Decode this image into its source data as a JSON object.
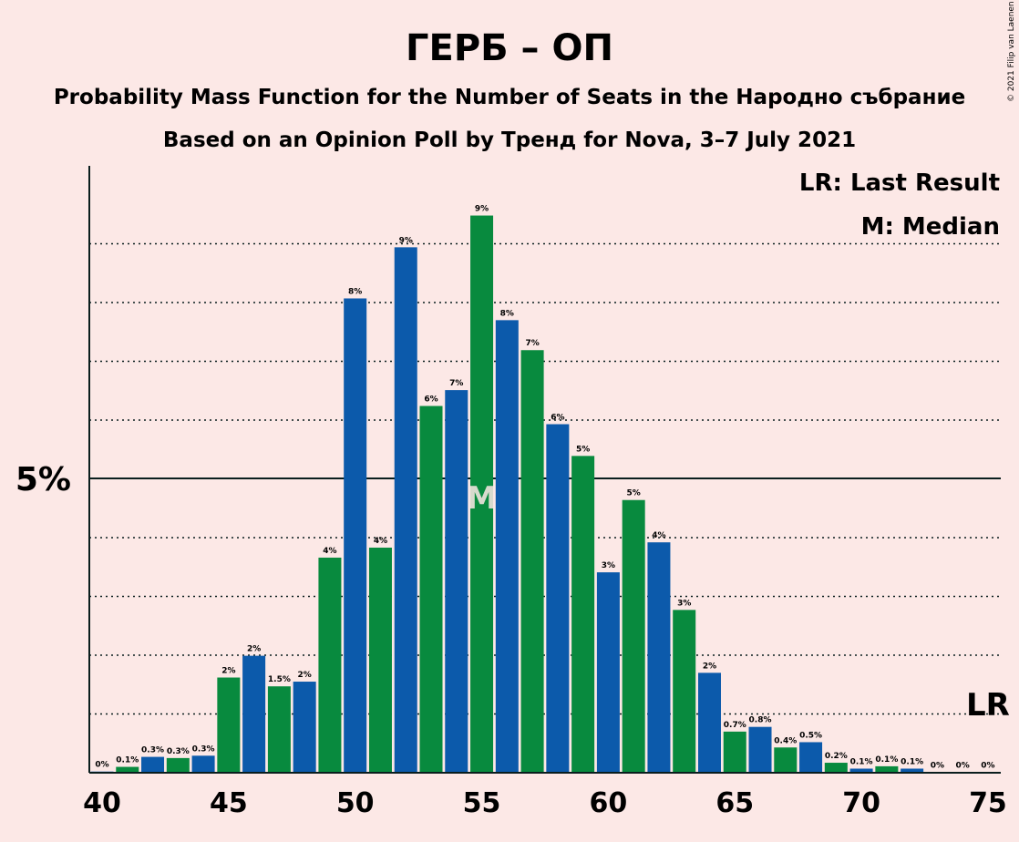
{
  "chart_data": {
    "type": "bar",
    "title": "ГЕРБ – ОП",
    "subtitle1": "Probability Mass Function for the Number of Seats in the Народно събрание",
    "subtitle2": "Based on an Opinion Poll by Тренд for Nova, 3–7 July 2021",
    "copyright": "© 2021 Filip van Laenen",
    "legend": {
      "lr": "LR: Last Result",
      "m": "M: Median"
    },
    "median_marker": "M",
    "last_result_marker": "LR",
    "median_seat": 55,
    "last_result_seat": 75,
    "ytick_label": "5%",
    "ytick_value": 5,
    "xticks": [
      "40",
      "45",
      "50",
      "55",
      "60",
      "65",
      "70",
      "75"
    ],
    "xlim": [
      40,
      75
    ],
    "ylim": [
      0,
      10.3
    ],
    "gridlines": [
      1,
      2,
      3,
      4,
      6,
      7,
      8,
      9
    ],
    "colors": {
      "blue": "#0c5aab",
      "green": "#088a3e",
      "background": "#fce8e6",
      "text": "#0a1e1e"
    },
    "seats": [
      40,
      41,
      42,
      43,
      44,
      45,
      46,
      47,
      48,
      49,
      50,
      51,
      52,
      53,
      54,
      55,
      56,
      57,
      58,
      59,
      60,
      61,
      62,
      63,
      64,
      65,
      66,
      67,
      68,
      69,
      70,
      71,
      72,
      73,
      74,
      75
    ],
    "values": [
      0.02,
      0.1,
      0.27,
      0.25,
      0.29,
      1.62,
      1.99,
      1.47,
      1.55,
      3.66,
      8.07,
      3.83,
      8.94,
      6.24,
      6.51,
      9.48,
      7.7,
      7.19,
      5.93,
      5.39,
      3.41,
      4.64,
      3.92,
      2.77,
      1.7,
      0.7,
      0.78,
      0.43,
      0.52,
      0.17,
      0.07,
      0.11,
      0.07,
      0.01,
      0.01,
      0.01
    ],
    "labels": [
      "0%",
      "0.1%",
      "0.3%",
      "0.3%",
      "0.3%",
      "2%",
      "2%",
      "1.5%",
      "2%",
      "4%",
      "8%",
      "4%",
      "9%",
      "6%",
      "7%",
      "9%",
      "8%",
      "7%",
      "6%",
      "5%",
      "3%",
      "5%",
      "4%",
      "3%",
      "2%",
      "0.7%",
      "0.8%",
      "0.4%",
      "0.5%",
      "0.2%",
      "0.1%",
      "0.1%",
      "0.1%",
      "0%",
      "0%",
      "0%"
    ]
  }
}
